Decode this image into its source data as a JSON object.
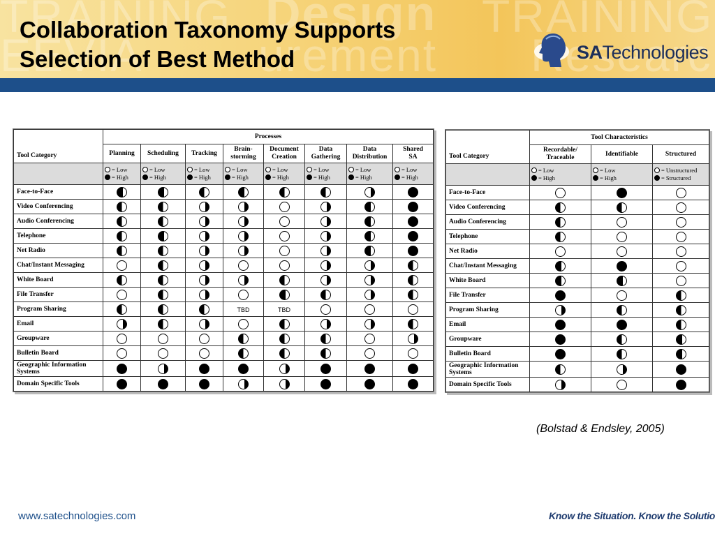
{
  "slide": {
    "title_line1": "Collaboration Taxonomy Supports",
    "title_line2": "Selection of Best Method",
    "logo_text_bold": "SA",
    "logo_text_rest": "Technologies",
    "citation": "(Bolstad & Endsley, 2005)",
    "footer_url": "www.satechnologies.com",
    "footer_tagline": "Know the Situation. Know the Solution.",
    "colors": {
      "banner_blue": "#1d4f8a",
      "banner_gold": "#f6d47a"
    }
  },
  "processes_table": {
    "group_header": "Processes",
    "category_header": "Tool Category",
    "columns": [
      "Planning",
      "Scheduling",
      "Tracking",
      "Brain-\nstorming",
      "Document\nCreation",
      "Data\nGathering",
      "Data\nDistribution",
      "Shared\nSA"
    ],
    "legend_low": "= Low",
    "legend_high": "= High",
    "rows": [
      {
        "label": "Face-to-Face",
        "cells": [
          0.75,
          0.75,
          0.5,
          0.75,
          0.5,
          0.5,
          0.25,
          1
        ]
      },
      {
        "label": "Video Conferencing",
        "cells": [
          0.5,
          0.5,
          0.25,
          0.25,
          0,
          0.25,
          0.75,
          1
        ]
      },
      {
        "label": "Audio Conferencing",
        "cells": [
          0.5,
          0.5,
          0.25,
          0.25,
          0,
          0.25,
          0.75,
          1
        ]
      },
      {
        "label": "Telephone",
        "cells": [
          0.5,
          0.75,
          0.25,
          0.25,
          0,
          0.25,
          0.75,
          1
        ]
      },
      {
        "label": "Net Radio",
        "cells": [
          0.5,
          0.5,
          0.25,
          0.25,
          0,
          0.25,
          0.75,
          1
        ]
      },
      {
        "label": "Chat/Instant Messaging",
        "cells": [
          0,
          0.5,
          0.25,
          0,
          0,
          0.25,
          0.25,
          0.5
        ]
      },
      {
        "label": "White Board",
        "cells": [
          0.5,
          0.5,
          0.25,
          0.25,
          0.5,
          0.25,
          0.25,
          0.5
        ]
      },
      {
        "label": "File Transfer",
        "cells": [
          0,
          0.5,
          0.25,
          0,
          0.75,
          0.5,
          0.25,
          0.5
        ]
      },
      {
        "label": "Program Sharing",
        "cells": [
          0.5,
          0.5,
          0.5,
          "TBD",
          "TBD",
          0,
          0,
          0
        ]
      },
      {
        "label": "Email",
        "cells": [
          0.25,
          0.5,
          0.25,
          0,
          0.5,
          0.25,
          0.25,
          0.5
        ]
      },
      {
        "label": "Groupware",
        "cells": [
          0,
          0,
          0,
          0.5,
          0.5,
          0.5,
          0,
          0.25
        ]
      },
      {
        "label": "Bulletin Board",
        "cells": [
          0,
          0,
          0,
          0.5,
          0.5,
          0.5,
          0,
          0
        ]
      },
      {
        "label": "Geographic Information\nSystems",
        "cells": [
          1,
          0.25,
          1,
          1,
          0.25,
          1,
          1,
          1
        ]
      },
      {
        "label": "Domain Specific Tools",
        "cells": [
          1,
          1,
          1,
          0.25,
          0.25,
          1,
          1,
          1
        ]
      }
    ]
  },
  "characteristics_table": {
    "group_header": "Tool Characteristics",
    "category_header": "Tool Category",
    "columns": [
      "Recordable/\nTraceable",
      "Identifiable",
      "Structured"
    ],
    "legend": [
      {
        "low": "= Low",
        "high": "= High"
      },
      {
        "low": "= Low",
        "high": "= High"
      },
      {
        "low": "= Unstructured",
        "high": "= Structured"
      }
    ],
    "rows": [
      {
        "label": "Face-to-Face",
        "cells": [
          0,
          1,
          0
        ]
      },
      {
        "label": "Video Conferencing",
        "cells": [
          0.5,
          0.5,
          0
        ]
      },
      {
        "label": "Audio Conferencing",
        "cells": [
          0.5,
          0,
          0
        ]
      },
      {
        "label": "Telephone",
        "cells": [
          0.5,
          0,
          0
        ]
      },
      {
        "label": "Net Radio",
        "cells": [
          0,
          0,
          0
        ]
      },
      {
        "label": "Chat/Instant Messaging",
        "cells": [
          0.75,
          1,
          0
        ]
      },
      {
        "label": "White Board",
        "cells": [
          0.75,
          0.75,
          0
        ]
      },
      {
        "label": "File Transfer",
        "cells": [
          1,
          0,
          0.5
        ]
      },
      {
        "label": "Program Sharing",
        "cells": [
          0.25,
          0.5,
          0.5
        ]
      },
      {
        "label": "Email",
        "cells": [
          1,
          1,
          0.5
        ]
      },
      {
        "label": "Groupware",
        "cells": [
          1,
          0.5,
          0.75
        ]
      },
      {
        "label": "Bulletin Board",
        "cells": [
          1,
          0.5,
          0.75
        ]
      },
      {
        "label": "Geographic Information\nSystems",
        "cells": [
          0.5,
          0.25,
          1
        ]
      },
      {
        "label": "Domain Specific Tools",
        "cells": [
          0.25,
          0,
          1
        ]
      }
    ]
  }
}
